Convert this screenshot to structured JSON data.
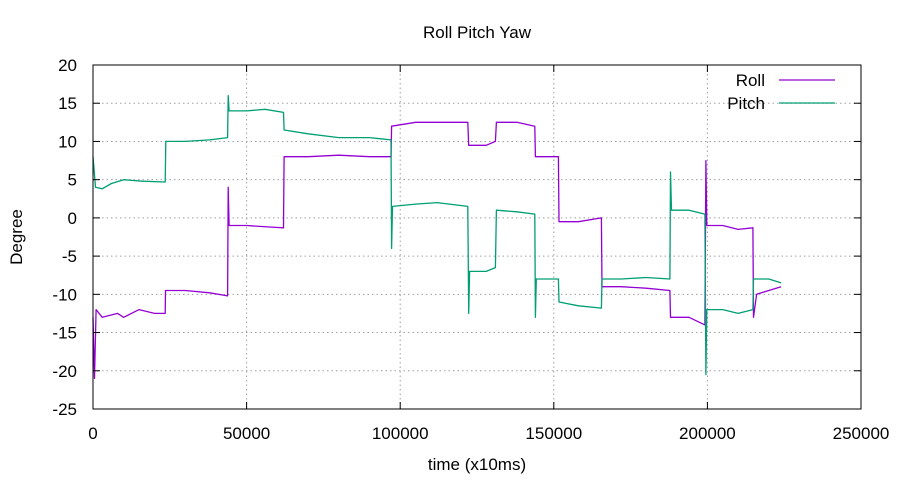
{
  "chart_data": {
    "type": "line",
    "title": "Roll Pitch Yaw",
    "xlabel": "time (x10ms)",
    "ylabel": "Degree",
    "xlim": [
      0,
      250000
    ],
    "ylim": [
      -25,
      20
    ],
    "xticks": [
      0,
      50000,
      100000,
      150000,
      200000,
      250000
    ],
    "yticks": [
      -25,
      -20,
      -15,
      -10,
      -5,
      0,
      5,
      10,
      15,
      20
    ],
    "grid": true,
    "legend_position": "top-right",
    "series": [
      {
        "name": "Roll",
        "color": "#9400d3",
        "points": [
          [
            0,
            -13
          ],
          [
            500,
            -21
          ],
          [
            1000,
            -12
          ],
          [
            3000,
            -13
          ],
          [
            8000,
            -12.5
          ],
          [
            10000,
            -13
          ],
          [
            15000,
            -12
          ],
          [
            20000,
            -12.5
          ],
          [
            23500,
            -12.5
          ],
          [
            23600,
            -9.5
          ],
          [
            30000,
            -9.5
          ],
          [
            38000,
            -9.8
          ],
          [
            43800,
            -10.2
          ],
          [
            44000,
            4
          ],
          [
            44300,
            -1
          ],
          [
            50000,
            -1
          ],
          [
            58000,
            -1.2
          ],
          [
            62000,
            -1.3
          ],
          [
            62200,
            8
          ],
          [
            70000,
            8
          ],
          [
            80000,
            8.2
          ],
          [
            90000,
            8
          ],
          [
            97000,
            8
          ],
          [
            97200,
            12
          ],
          [
            105000,
            12.5
          ],
          [
            112000,
            12.5
          ],
          [
            122000,
            12.5
          ],
          [
            122300,
            9.5
          ],
          [
            128000,
            9.5
          ],
          [
            131000,
            10
          ],
          [
            131300,
            12.5
          ],
          [
            138000,
            12.5
          ],
          [
            143800,
            12
          ],
          [
            144000,
            8
          ],
          [
            148000,
            8
          ],
          [
            151500,
            8
          ],
          [
            151700,
            -0.5
          ],
          [
            158000,
            -0.5
          ],
          [
            165500,
            0
          ],
          [
            165700,
            -9
          ],
          [
            172000,
            -9
          ],
          [
            180000,
            -9.2
          ],
          [
            187800,
            -9.5
          ],
          [
            188000,
            -13
          ],
          [
            194000,
            -13
          ],
          [
            199200,
            -14
          ],
          [
            199500,
            7.5
          ],
          [
            199800,
            -1
          ],
          [
            205000,
            -1
          ],
          [
            210000,
            -1.5
          ],
          [
            214800,
            -1.3
          ],
          [
            215000,
            -13
          ],
          [
            216000,
            -10
          ],
          [
            220000,
            -9.5
          ],
          [
            224000,
            -9
          ]
        ]
      },
      {
        "name": "Pitch",
        "color": "#009e73",
        "points": [
          [
            0,
            8
          ],
          [
            800,
            4
          ],
          [
            3000,
            3.8
          ],
          [
            6000,
            4.5
          ],
          [
            10000,
            5
          ],
          [
            16000,
            4.8
          ],
          [
            23500,
            4.7
          ],
          [
            23700,
            10
          ],
          [
            30000,
            10
          ],
          [
            38000,
            10.2
          ],
          [
            43800,
            10.5
          ],
          [
            44000,
            16
          ],
          [
            44300,
            14
          ],
          [
            50000,
            14
          ],
          [
            56000,
            14.2
          ],
          [
            62000,
            13.8
          ],
          [
            62200,
            11.5
          ],
          [
            70000,
            11
          ],
          [
            80000,
            10.5
          ],
          [
            90000,
            10.5
          ],
          [
            97000,
            10.2
          ],
          [
            97200,
            -4
          ],
          [
            97500,
            1.5
          ],
          [
            105000,
            1.8
          ],
          [
            112000,
            2
          ],
          [
            122000,
            1.5
          ],
          [
            122300,
            -12.5
          ],
          [
            122600,
            -7
          ],
          [
            128000,
            -7
          ],
          [
            131000,
            -6.5
          ],
          [
            131300,
            1
          ],
          [
            138000,
            0.8
          ],
          [
            143800,
            0.5
          ],
          [
            144000,
            -13
          ],
          [
            144300,
            -8
          ],
          [
            148000,
            -8
          ],
          [
            151500,
            -8
          ],
          [
            151700,
            -11
          ],
          [
            158000,
            -11.5
          ],
          [
            165500,
            -11.8
          ],
          [
            165700,
            -8
          ],
          [
            172000,
            -8
          ],
          [
            180000,
            -7.8
          ],
          [
            187800,
            -8
          ],
          [
            188000,
            6
          ],
          [
            188300,
            1
          ],
          [
            194000,
            1
          ],
          [
            199200,
            0.5
          ],
          [
            199500,
            -20.5
          ],
          [
            199800,
            -12
          ],
          [
            205000,
            -12
          ],
          [
            210000,
            -12.5
          ],
          [
            214800,
            -12
          ],
          [
            215000,
            -8
          ],
          [
            220000,
            -8
          ],
          [
            224000,
            -8.5
          ]
        ]
      }
    ]
  }
}
